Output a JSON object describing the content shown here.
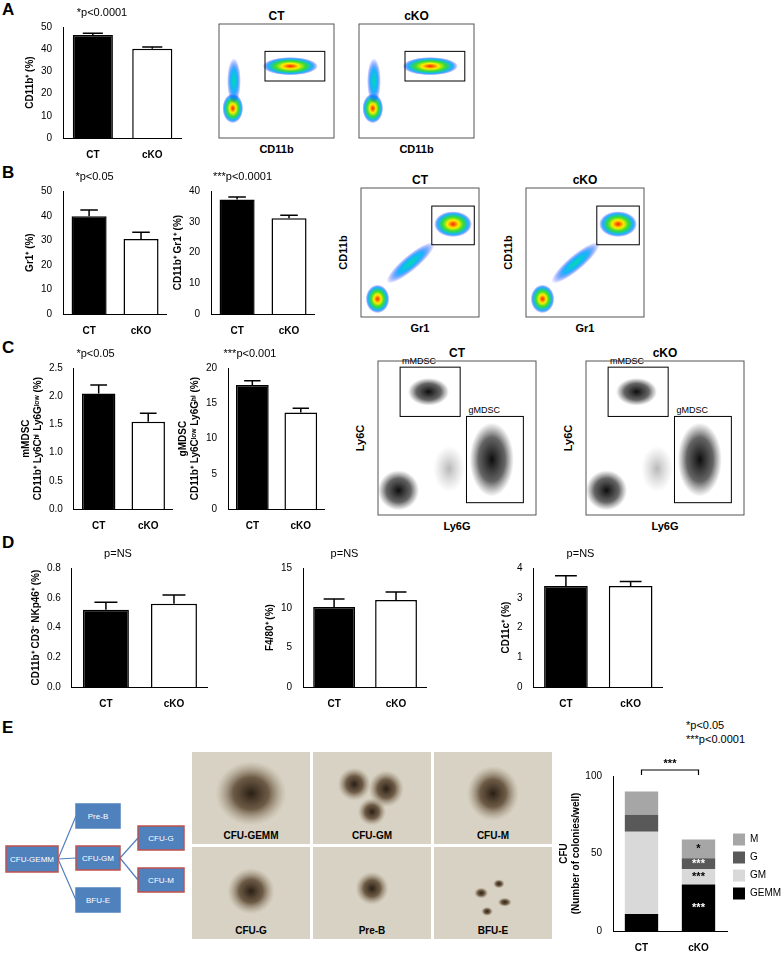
{
  "panel_labels": [
    "A",
    "B",
    "C",
    "D",
    "E"
  ],
  "chart_data": [
    {
      "panel": "A",
      "type": "bar",
      "annotation": "*p<0.0001",
      "y_label": "CD11b⁺ (%)",
      "categories": [
        "CT",
        "cKO"
      ],
      "values": [
        46.5,
        40.3
      ],
      "errors": [
        0.8,
        0.8
      ],
      "colors": [
        "#000000",
        "#ffffff"
      ],
      "ylim": [
        0,
        50
      ],
      "yticks": [
        0,
        10,
        20,
        30,
        40,
        50
      ],
      "grid": false
    },
    {
      "panel": "B",
      "type": "bar",
      "annotation": "*p<0.05",
      "y_label": "Gr1⁺ (%)",
      "categories": [
        "CT",
        "cKO"
      ],
      "values": [
        39.8,
        30.5
      ],
      "errors": [
        2.5,
        2.8
      ],
      "colors": [
        "#000000",
        "#ffffff"
      ],
      "ylim": [
        0,
        50
      ],
      "yticks": [
        0,
        10,
        20,
        30,
        40,
        50
      ],
      "grid": false
    },
    {
      "panel": "B",
      "type": "bar",
      "annotation": "***p<0.0001",
      "y_label": "CD11b⁺ Gr1⁺ (%)",
      "categories": [
        "CT",
        "cKO"
      ],
      "values": [
        37.3,
        31.2
      ],
      "errors": [
        0.8,
        1.0
      ],
      "colors": [
        "#000000",
        "#ffffff"
      ],
      "ylim": [
        0,
        40
      ],
      "yticks": [
        0,
        10,
        20,
        30,
        40
      ],
      "grid": false
    },
    {
      "panel": "C",
      "type": "bar",
      "annotation": "*p<0.05",
      "y_label": [
        "mMDSC",
        "CD11b⁺ Ly6Cʰⁱ Ly6Gˡᵒʷ (%)"
      ],
      "categories": [
        "CT",
        "cKO"
      ],
      "values": [
        2.05,
        1.55
      ],
      "errors": [
        0.15,
        0.15
      ],
      "colors": [
        "#000000",
        "#ffffff"
      ],
      "ylim": [
        0,
        2.5
      ],
      "yticks": [
        {
          "value": 0,
          "label": "0.0"
        },
        {
          "value": 0.5,
          "label": "0.5"
        },
        {
          "value": 1,
          "label": "1.0"
        },
        {
          "value": 1.5,
          "label": "1.5"
        },
        {
          "value": 2,
          "label": "2.0"
        },
        {
          "value": 2.5,
          "label": "2.5"
        }
      ],
      "grid": false
    },
    {
      "panel": "C",
      "type": "bar",
      "annotation": "***p<0.001",
      "y_label": [
        "gMDSC",
        "CD11b⁺ Ly6Cˡᵒʷ Ly6Gʰⁱ (%)"
      ],
      "categories": [
        "CT",
        "cKO"
      ],
      "values": [
        17.6,
        13.7
      ],
      "errors": [
        0.6,
        0.6
      ],
      "colors": [
        "#000000",
        "#ffffff"
      ],
      "ylim": [
        0,
        20
      ],
      "yticks": [
        0,
        5,
        10,
        15,
        20
      ],
      "grid": false
    },
    {
      "panel": "D",
      "type": "bar",
      "annotation": "p=NS",
      "y_label": "CD11b⁺ CD3⁻ NKp46⁺ (%)",
      "categories": [
        "CT",
        "cKO"
      ],
      "values": [
        0.52,
        0.56
      ],
      "errors": [
        0.05,
        0.06
      ],
      "colors": [
        "#000000",
        "#ffffff"
      ],
      "ylim": [
        0,
        0.8
      ],
      "yticks": [
        {
          "value": 0,
          "label": "0.0"
        },
        {
          "value": 0.2,
          "label": "0.2"
        },
        {
          "value": 0.4,
          "label": "0.4"
        },
        {
          "value": 0.6,
          "label": "0.6"
        },
        {
          "value": 0.8,
          "label": "0.8"
        }
      ],
      "grid": false
    },
    {
      "panel": "D",
      "type": "bar",
      "annotation": "p=NS",
      "y_label": "F4/80⁺ (%)",
      "categories": [
        "CT",
        "cKO"
      ],
      "values": [
        10.1,
        11.0
      ],
      "errors": [
        1.0,
        1.0
      ],
      "colors": [
        "#000000",
        "#ffffff"
      ],
      "ylim": [
        0,
        15
      ],
      "yticks": [
        0,
        5,
        10,
        15
      ],
      "grid": false
    },
    {
      "panel": "D",
      "type": "bar",
      "annotation": "p=NS",
      "y_label": "CD11c⁺ (%)",
      "categories": [
        "CT",
        "cKO"
      ],
      "values": [
        3.4,
        3.4
      ],
      "errors": [
        0.35,
        0.15
      ],
      "colors": [
        "#000000",
        "#ffffff"
      ],
      "ylim": [
        0,
        4
      ],
      "yticks": [
        0,
        1,
        2,
        3,
        4
      ],
      "grid": false
    },
    {
      "panel": "E",
      "type": "bar",
      "stacked": true,
      "legend": "right",
      "grid": false,
      "y_label": [
        "CFU",
        "(Number of colonies/well)"
      ],
      "categories": [
        "CT",
        "cKO"
      ],
      "series": [
        {
          "name": "GEMM",
          "color": "#000000",
          "values": [
            11,
            30
          ],
          "significance": [
            null,
            "***"
          ]
        },
        {
          "name": "GM",
          "color": "#d9d9d9",
          "values": [
            53,
            10
          ],
          "significance": [
            null,
            "***"
          ]
        },
        {
          "name": "G",
          "color": "#595959",
          "values": [
            11,
            7
          ],
          "significance": [
            null,
            "***"
          ]
        },
        {
          "name": "M",
          "color": "#a6a6a6",
          "values": [
            15,
            12
          ],
          "significance": [
            null,
            "*"
          ]
        }
      ],
      "bracket": {
        "text": "***",
        "between": [
          "CT",
          "cKO"
        ]
      },
      "notes": [
        "*p<0.05",
        "***p<0.0001"
      ],
      "ylim": [
        0,
        100
      ],
      "yticks": [
        0,
        50,
        100
      ]
    }
  ],
  "flow_plots": [
    {
      "panel": "A",
      "title": "CT",
      "x_label": "CD11b"
    },
    {
      "panel": "A",
      "title": "cKO",
      "x_label": "CD11b"
    },
    {
      "panel": "B",
      "title": "CT",
      "x_label": "Gr1",
      "y_label": "CD11b"
    },
    {
      "panel": "B",
      "title": "cKO",
      "x_label": "Gr1",
      "y_label": "CD11b"
    },
    {
      "panel": "C",
      "title": "CT",
      "x_label": "Ly6G",
      "y_label": "Ly6C",
      "gates": [
        "mMDSC",
        "gMDSC"
      ]
    },
    {
      "panel": "C",
      "title": "cKO",
      "x_label": "Ly6G",
      "y_label": "Ly6C",
      "gates": [
        "mMDSC",
        "gMDSC"
      ]
    }
  ],
  "diagram": {
    "nodes": [
      {
        "label": "CFU-GEMM",
        "border_color": "#c0504d"
      },
      {
        "label": "Pre-B",
        "border_color": "#4f81bd"
      },
      {
        "label": "CFU-GM",
        "border_color": "#c0504d"
      },
      {
        "label": "BFU-E",
        "border_color": "#4f81bd"
      },
      {
        "label": "CFU-G",
        "border_color": "#c0504d"
      },
      {
        "label": "CFU-M",
        "border_color": "#c0504d"
      }
    ],
    "edges": [
      [
        "CFU-GEMM",
        "Pre-B"
      ],
      [
        "CFU-GEMM",
        "CFU-GM"
      ],
      [
        "CFU-GEMM",
        "BFU-E"
      ],
      [
        "CFU-GM",
        "CFU-G"
      ],
      [
        "CFU-GM",
        "CFU-M"
      ]
    ]
  },
  "photos": [
    "CFU-GEMM",
    "CFU-GM",
    "CFU-M",
    "CFU-G",
    "Pre-B",
    "BFU-E"
  ]
}
